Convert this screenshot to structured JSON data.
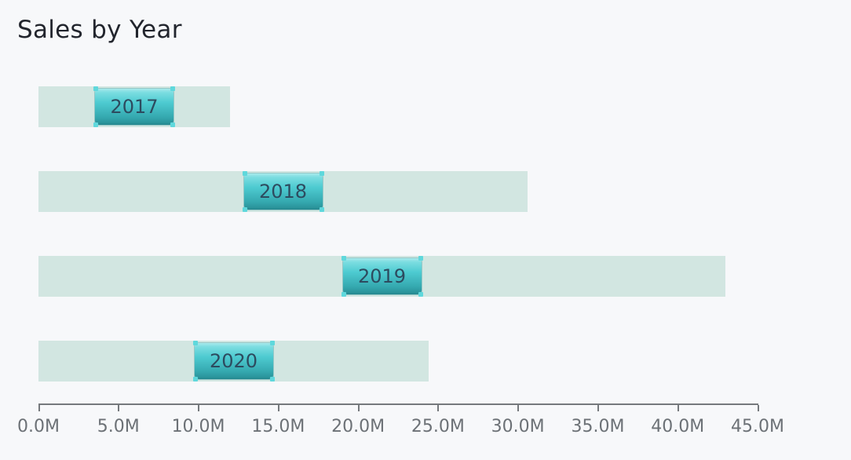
{
  "page": {
    "background": "#f7f8fa"
  },
  "chart_data": {
    "type": "bar",
    "orientation": "horizontal",
    "title": "Sales by Year",
    "categories": [
      "2017",
      "2018",
      "2019",
      "2020"
    ],
    "values": [
      12.0,
      30.6,
      43.0,
      24.4
    ],
    "unit": "M",
    "xlabel": "",
    "ylabel": "",
    "xlim": [
      0,
      45
    ],
    "x_tick_values": [
      0,
      5,
      10,
      15,
      20,
      25,
      30,
      35,
      40,
      45
    ],
    "x_tick_labels": [
      "0.0M",
      "5.0M",
      "10.0M",
      "15.0M",
      "20.0M",
      "25.0M",
      "30.0M",
      "35.0M",
      "40.0M",
      "45.0M"
    ],
    "grid": false,
    "legend": false,
    "bar_label_style": "centered-draggable-handle-with-resize-dots",
    "colors": {
      "bg": "#f7f8fa",
      "track": "#d2e6e1",
      "handle_top": "#a9e9eb",
      "handle_mid": "#4ecbd1",
      "handle_bottom": "#2b959c",
      "dot": "#5fd8dc",
      "label_text": "#2d4b5f",
      "axis": "#75797d",
      "tick_text": "#6c7176",
      "title_text": "#22252d"
    }
  }
}
